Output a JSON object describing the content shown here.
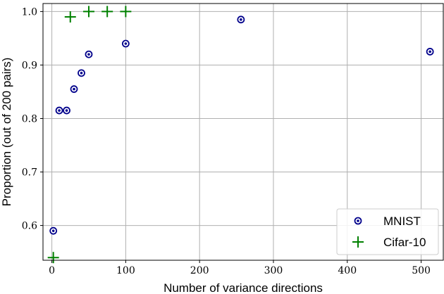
{
  "chart_data": {
    "type": "scatter",
    "xlabel": "Number of variance directions",
    "ylabel": "Proportion (out of 200 pairs)",
    "xlim": [
      -12,
      530
    ],
    "ylim": [
      0.535,
      1.015
    ],
    "xticks": [
      0,
      100,
      200,
      300,
      400,
      500
    ],
    "yticks": [
      0.6,
      0.7,
      0.8,
      0.9,
      1.0
    ],
    "xtick_labels": [
      "0",
      "100",
      "200",
      "300",
      "400",
      "500"
    ],
    "ytick_labels": [
      "0.6",
      "0.7",
      "0.8",
      "0.9",
      "1.0"
    ],
    "grid": true,
    "legend_position": "lower-right",
    "series": [
      {
        "name": "MNIST",
        "marker": "circle-dot",
        "color": "#00008b",
        "points": [
          [
            2,
            0.59
          ],
          [
            10,
            0.815
          ],
          [
            20,
            0.815
          ],
          [
            30,
            0.855
          ],
          [
            40,
            0.885
          ],
          [
            50,
            0.92
          ],
          [
            100,
            0.94
          ],
          [
            256,
            0.985
          ],
          [
            512,
            0.925
          ]
        ]
      },
      {
        "name": "Cifar-10",
        "marker": "plus",
        "color": "#008000",
        "points": [
          [
            2,
            0.54
          ],
          [
            25,
            0.99
          ],
          [
            50,
            1.0
          ],
          [
            75,
            1.0
          ],
          [
            100,
            1.0
          ]
        ]
      }
    ]
  }
}
